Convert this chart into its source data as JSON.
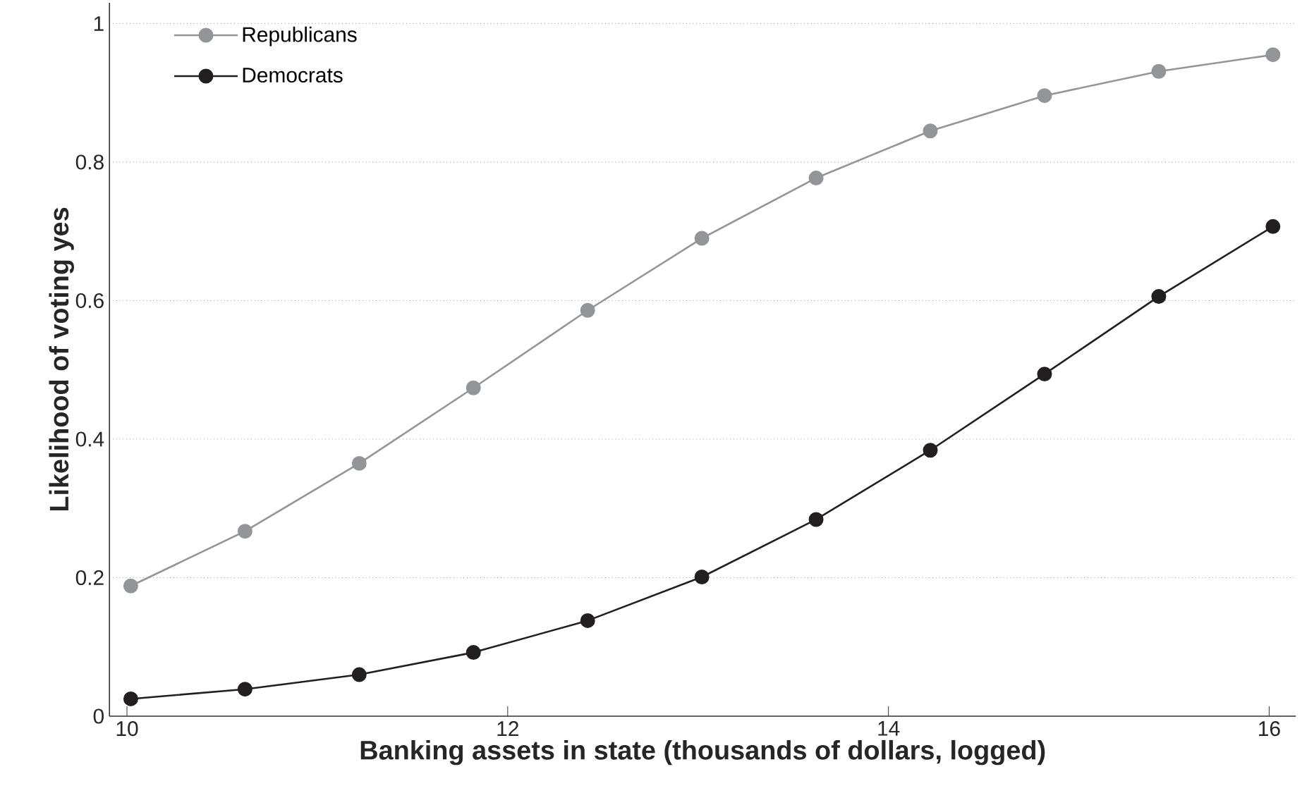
{
  "chart_data": {
    "type": "line",
    "xlabel": "Banking assets in state (thousands of dollars, logged)",
    "ylabel": "Likelihood of voting yes",
    "xlim": [
      9.908,
      16.14
    ],
    "ylim": [
      0,
      1.03
    ],
    "xticks": [
      10,
      12,
      14,
      16
    ],
    "yticks": [
      0,
      0.2,
      0.4,
      0.6,
      0.8,
      1
    ],
    "grid": "y",
    "legend": "top left",
    "marker": "circle",
    "line_style": "solid",
    "x": [
      10.02,
      10.62,
      11.22,
      11.82,
      12.42,
      13.02,
      13.62,
      14.22,
      14.82,
      15.42,
      16.02
    ],
    "series": [
      {
        "name": "Republicans",
        "color": "#939598",
        "values": [
          0.188,
          0.267,
          0.365,
          0.474,
          0.586,
          0.69,
          0.777,
          0.845,
          0.896,
          0.931,
          0.955
        ]
      },
      {
        "name": "Democrats",
        "color": "#231f20",
        "values": [
          0.025,
          0.039,
          0.06,
          0.092,
          0.138,
          0.201,
          0.284,
          0.384,
          0.494,
          0.606,
          0.707
        ]
      }
    ]
  }
}
